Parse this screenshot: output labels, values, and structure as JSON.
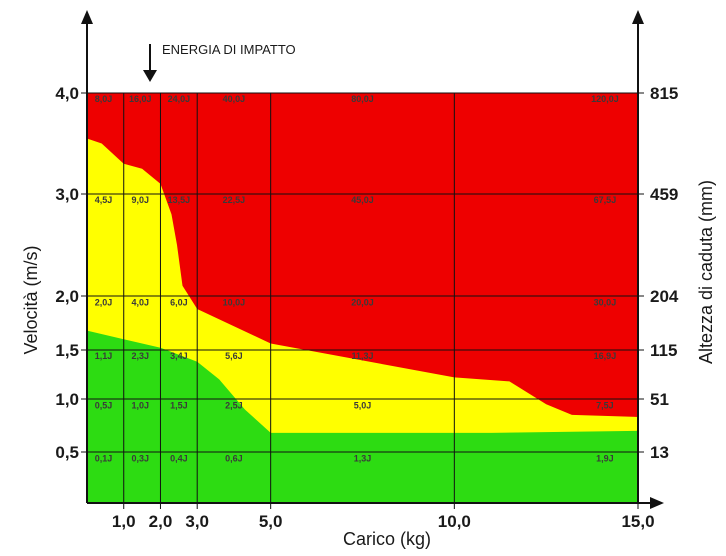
{
  "chart_data": {
    "type": "heatmap",
    "annotation": "ENERGIA DI IMPATTO",
    "xlabel": "Carico (kg)",
    "ylabel_left": "Velocità (m/s)",
    "ylabel_right": "Altezza di caduta (mm)",
    "xlim": [
      0,
      15
    ],
    "x_ticks": [
      {
        "value": 1,
        "label": "1,0"
      },
      {
        "value": 2,
        "label": "2,0"
      },
      {
        "value": 3,
        "label": "3,0"
      },
      {
        "value": 5,
        "label": "5,0"
      },
      {
        "value": 10,
        "label": "10,0"
      },
      {
        "value": 15,
        "label": "15,0"
      }
    ],
    "y_ticks": [
      {
        "value": 0.5,
        "label": "0,5",
        "right_label": "13"
      },
      {
        "value": 1.0,
        "label": "1,0",
        "right_label": "51"
      },
      {
        "value": 1.5,
        "label": "1,5",
        "right_label": "115"
      },
      {
        "value": 2.0,
        "label": "2,0",
        "right_label": "204"
      },
      {
        "value": 3.0,
        "label": "3,0",
        "right_label": "459"
      },
      {
        "value": 4.0,
        "label": "4,0",
        "right_label": "815"
      }
    ],
    "zone_colors": {
      "green": "#2ddc12",
      "yellow": "#ffff00",
      "red": "#ee0000"
    },
    "boundary_yellow_red": [
      [
        0,
        3.55
      ],
      [
        0.4,
        3.5
      ],
      [
        1,
        3.3
      ],
      [
        1.5,
        3.25
      ],
      [
        2,
        3.1
      ],
      [
        2.3,
        2.8
      ],
      [
        2.45,
        2.5
      ],
      [
        2.6,
        2.1
      ],
      [
        3,
        1.88
      ],
      [
        5,
        1.56
      ],
      [
        10,
        1.22
      ],
      [
        11.5,
        1.18
      ],
      [
        12.5,
        0.95
      ],
      [
        13.2,
        0.85
      ],
      [
        15,
        0.83
      ]
    ],
    "boundary_green_yellow": [
      [
        0,
        1.68
      ],
      [
        1,
        1.6
      ],
      [
        2,
        1.52
      ],
      [
        3,
        1.38
      ],
      [
        3.6,
        1.2
      ],
      [
        4.3,
        0.9
      ],
      [
        5,
        0.68
      ],
      [
        11,
        0.68
      ],
      [
        15,
        0.7
      ]
    ],
    "cell_labels": [
      {
        "x": 0.45,
        "y": 0.45,
        "text": "0,1J"
      },
      {
        "x": 1.45,
        "y": 0.45,
        "text": "0,3J"
      },
      {
        "x": 2.5,
        "y": 0.45,
        "text": "0,4J"
      },
      {
        "x": 4.0,
        "y": 0.45,
        "text": "0,6J"
      },
      {
        "x": 7.5,
        "y": 0.45,
        "text": "1,3J"
      },
      {
        "x": 14.1,
        "y": 0.45,
        "text": "1,9J"
      },
      {
        "x": 0.45,
        "y": 0.95,
        "text": "0,5J"
      },
      {
        "x": 1.45,
        "y": 0.95,
        "text": "1,0J"
      },
      {
        "x": 2.5,
        "y": 0.95,
        "text": "1,5J"
      },
      {
        "x": 4.0,
        "y": 0.95,
        "text": "2,5J"
      },
      {
        "x": 7.5,
        "y": 0.95,
        "text": "5,0J"
      },
      {
        "x": 14.1,
        "y": 0.95,
        "text": "7,5J"
      },
      {
        "x": 0.45,
        "y": 1.45,
        "text": "1,1J"
      },
      {
        "x": 1.45,
        "y": 1.45,
        "text": "2,3J"
      },
      {
        "x": 2.5,
        "y": 1.45,
        "text": "3,4J"
      },
      {
        "x": 4.0,
        "y": 1.45,
        "text": "5,6J"
      },
      {
        "x": 7.5,
        "y": 1.45,
        "text": "11,3J"
      },
      {
        "x": 14.1,
        "y": 1.45,
        "text": "16,9J"
      },
      {
        "x": 0.45,
        "y": 1.95,
        "text": "2,0J"
      },
      {
        "x": 1.45,
        "y": 1.95,
        "text": "4,0J"
      },
      {
        "x": 2.5,
        "y": 1.95,
        "text": "6,0J"
      },
      {
        "x": 4.0,
        "y": 1.95,
        "text": "10,0J"
      },
      {
        "x": 7.5,
        "y": 1.95,
        "text": "20,0J"
      },
      {
        "x": 14.1,
        "y": 1.95,
        "text": "30,0J"
      },
      {
        "x": 0.45,
        "y": 2.95,
        "text": "4,5J"
      },
      {
        "x": 1.45,
        "y": 2.95,
        "text": "9,0J"
      },
      {
        "x": 2.5,
        "y": 2.95,
        "text": "13,5J"
      },
      {
        "x": 4.0,
        "y": 2.95,
        "text": "22,5J"
      },
      {
        "x": 7.5,
        "y": 2.95,
        "text": "45,0J"
      },
      {
        "x": 14.1,
        "y": 2.95,
        "text": "67,5J"
      },
      {
        "x": 0.45,
        "y": 3.95,
        "text": "8,0J"
      },
      {
        "x": 1.45,
        "y": 3.95,
        "text": "16,0J"
      },
      {
        "x": 2.5,
        "y": 3.95,
        "text": "24,0J"
      },
      {
        "x": 4.0,
        "y": 3.95,
        "text": "40,0J"
      },
      {
        "x": 7.5,
        "y": 3.95,
        "text": "80,0J"
      },
      {
        "x": 14.1,
        "y": 3.95,
        "text": "120,0J"
      }
    ]
  }
}
